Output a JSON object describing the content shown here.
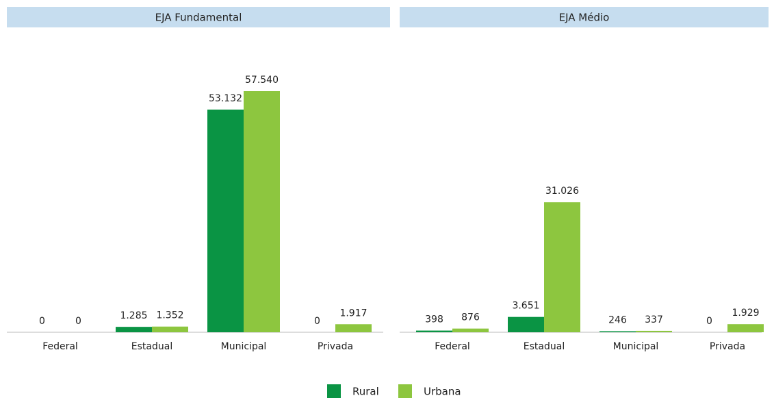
{
  "chart_data": [
    {
      "type": "bar",
      "title": "EJA Fundamental",
      "categories": [
        "Federal",
        "Estadual",
        "Municipal",
        "Privada"
      ],
      "series": [
        {
          "name": "Rural",
          "color": "#0a9444",
          "values": [
            0,
            1285,
            53132,
            0
          ],
          "value_labels": [
            "0",
            "1.285",
            "53.132",
            "0"
          ]
        },
        {
          "name": "Urbana",
          "color": "#8dc63f",
          "values": [
            0,
            1352,
            57540,
            1917
          ],
          "value_labels": [
            "0",
            "1.352",
            "57.540",
            "1.917"
          ]
        }
      ]
    },
    {
      "type": "bar",
      "title": "EJA Médio",
      "categories": [
        "Federal",
        "Estadual",
        "Municipal",
        "Privada"
      ],
      "series": [
        {
          "color": "#0a9444",
          "values": [
            398,
            3651,
            246,
            0
          ],
          "value_labels": [
            "398",
            "3.651",
            "246",
            "0"
          ]
        },
        {
          "color": "#8dc63f",
          "values": [
            876,
            31026,
            337,
            1929
          ],
          "value_labels": [
            "876",
            "31.026",
            "337",
            "1.929"
          ]
        }
      ]
    }
  ]
}
